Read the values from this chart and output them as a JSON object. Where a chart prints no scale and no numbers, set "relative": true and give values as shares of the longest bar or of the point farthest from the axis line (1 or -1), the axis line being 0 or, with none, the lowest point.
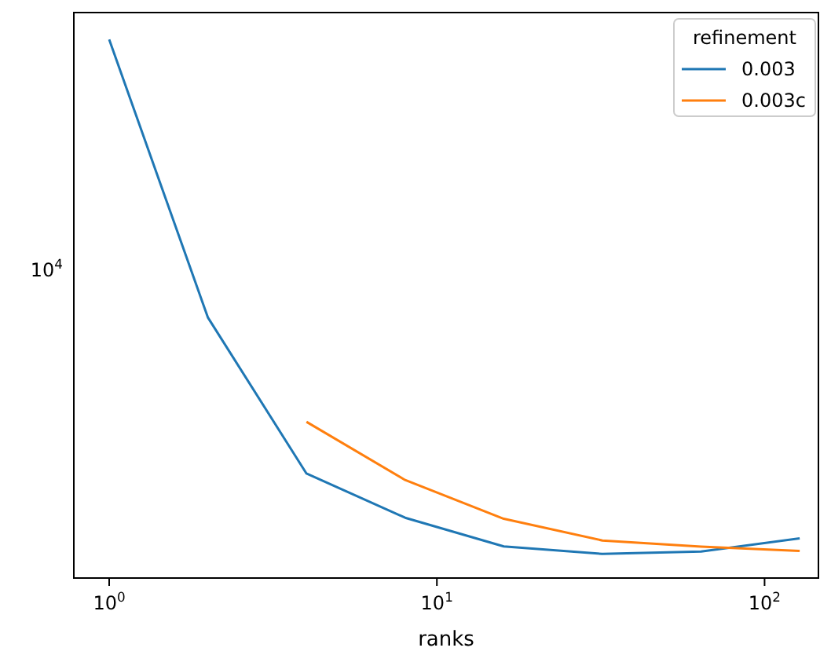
{
  "chart_data": {
    "type": "line",
    "xlabel": "ranks",
    "legend_title": "refinement",
    "log": "x",
    "legend": "top right",
    "xlim": [
      0.78,
      146
    ],
    "relative": true,
    "annotations": [
      "10$^{4}$"
    ],
    "xticks": [
      {
        "value": 1,
        "label": "10$^{0}$"
      },
      {
        "value": 10,
        "label": "10$^{1}$"
      },
      {
        "value": 100,
        "label": "10$^{2}$"
      }
    ],
    "series": [
      {
        "name": "0.003",
        "color": "#1f77b4",
        "x": [
          1,
          2,
          4,
          8,
          16,
          32,
          64,
          128
        ],
        "values": [
          1,
          0.484,
          0.194,
          0.112,
          0.0587,
          0.0447,
          0.0491,
          0.0736
        ]
      },
      {
        "name": "0.003c",
        "color": "#ff7f0e",
        "x": [
          4,
          8,
          16,
          32,
          64,
          128
        ],
        "values": [
          0.29,
          0.182,
          0.11,
          0.0697,
          0.0582,
          0.0504
        ]
      }
    ]
  }
}
